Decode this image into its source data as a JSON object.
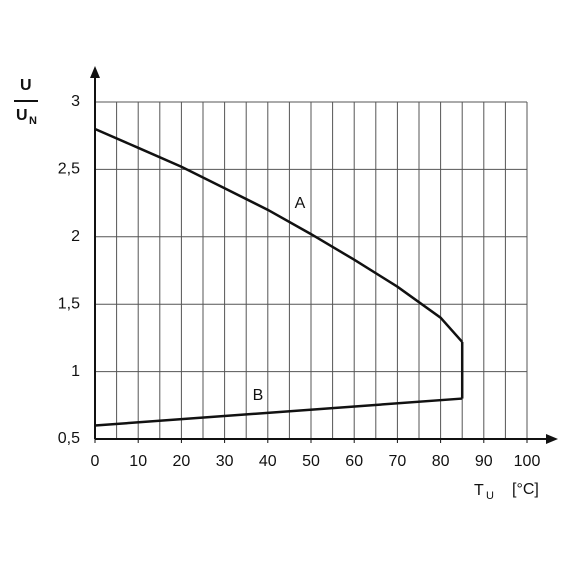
{
  "chart_data": {
    "type": "line",
    "ylabel_numerator": "U",
    "ylabel_denominator": "U",
    "ylabel_denominator_sub": "N",
    "xlabel": "T",
    "xlabel_sub": "U",
    "xunit": "[°C]",
    "series": [
      {
        "name": "A",
        "color": "#111111",
        "x": [
          0,
          10,
          20,
          30,
          40,
          50,
          60,
          70,
          80,
          85
        ],
        "values": [
          2.8,
          2.66,
          2.52,
          2.36,
          2.2,
          2.02,
          1.83,
          1.63,
          1.4,
          1.22
        ]
      },
      {
        "name": "B",
        "color": "#111111",
        "x": [
          0,
          85
        ],
        "values": [
          0.6,
          0.8
        ]
      }
    ],
    "xlim": [
      0,
      100
    ],
    "ylim": [
      0.5,
      3
    ],
    "xticks": [
      0,
      10,
      20,
      30,
      40,
      50,
      60,
      70,
      80,
      90,
      100
    ],
    "yticks": [
      {
        "value": 0.5,
        "label": "0,5"
      },
      1,
      {
        "value": 1.5,
        "label": "1,5"
      },
      2,
      {
        "value": 2.5,
        "label": "2,5"
      },
      3
    ],
    "xgrid_step": 5,
    "grid": true
  }
}
